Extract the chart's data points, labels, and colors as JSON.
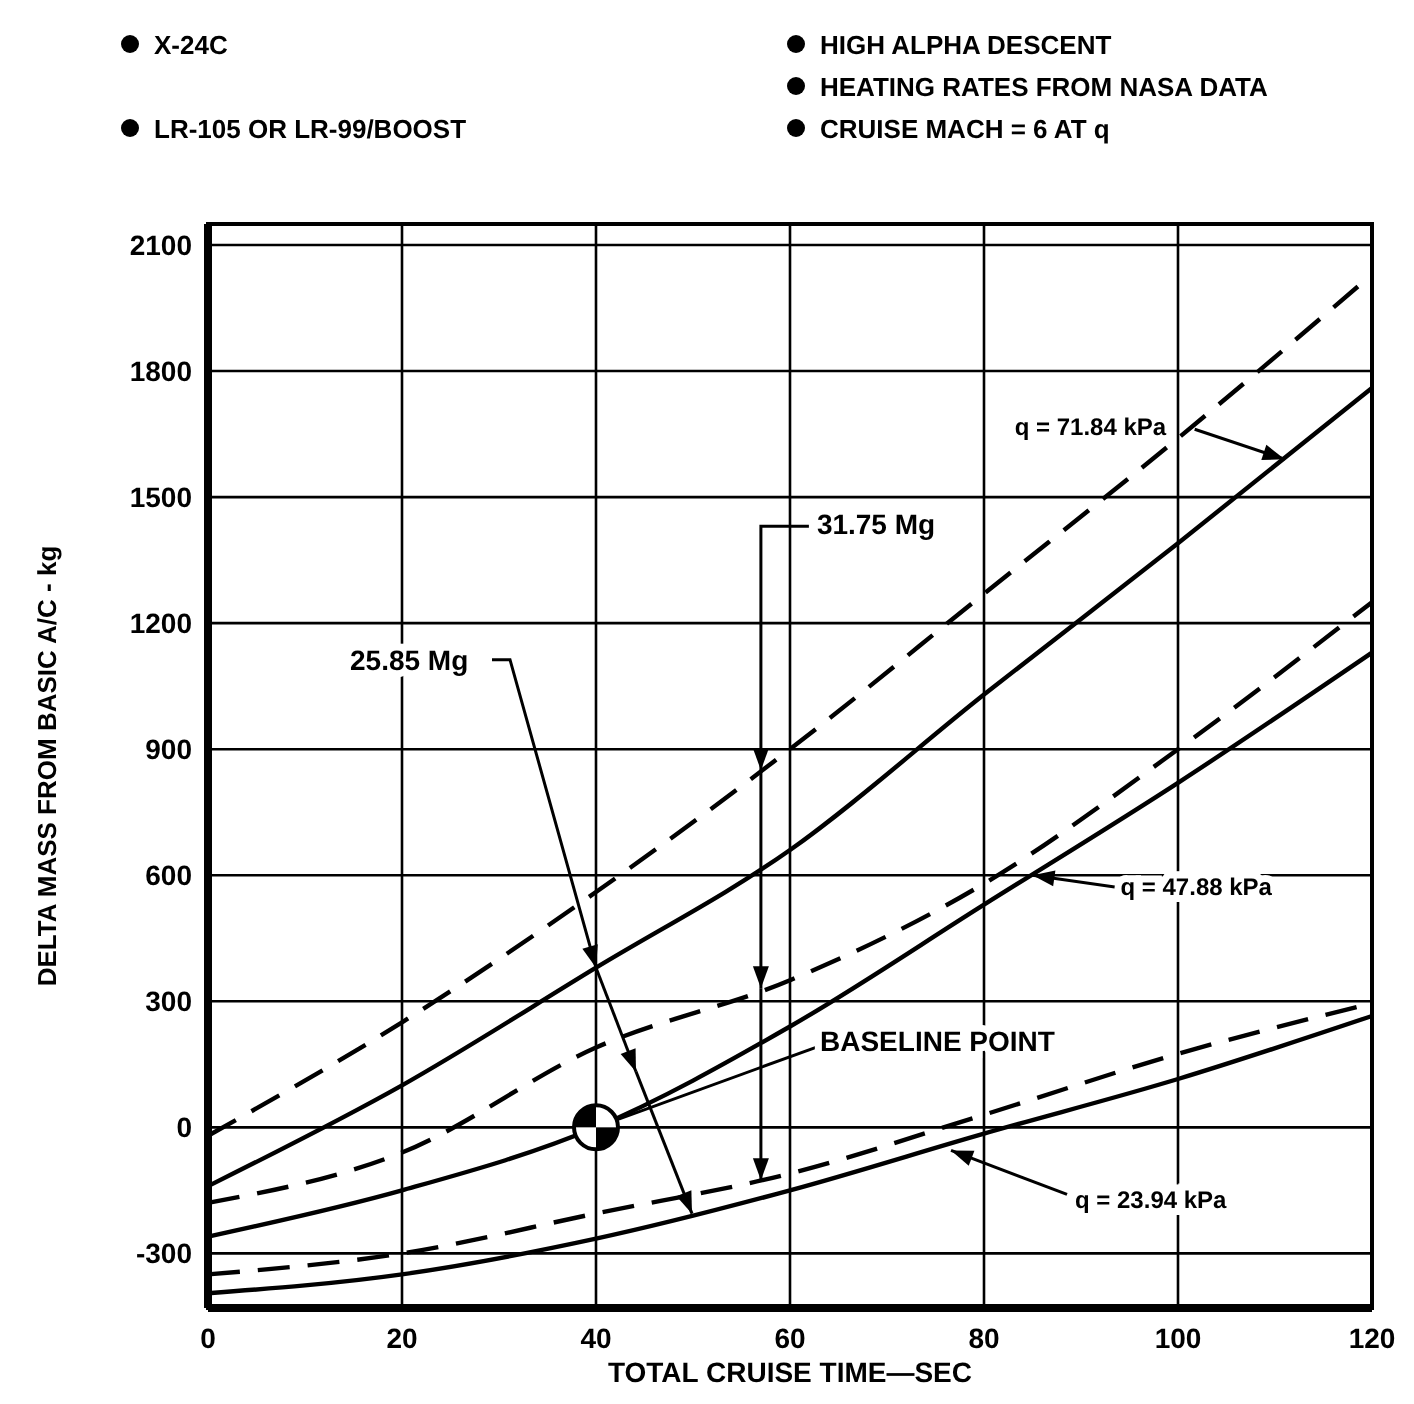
{
  "chart_data": {
    "type": "line",
    "xlabel": "TOTAL CRUISE TIME—SEC",
    "ylabel": "DELTA MASS FROM BASIC A/C - kg",
    "xlim": [
      0,
      120
    ],
    "xticks": [
      0,
      20,
      40,
      60,
      80,
      100,
      120
    ],
    "ylim": [
      -430,
      2150
    ],
    "yticks": [
      -300,
      0,
      300,
      600,
      900,
      1200,
      1500,
      1800,
      2100
    ],
    "grid": true,
    "series": [
      {
        "color": "#000000",
        "line_style": "dashed",
        "x": [
          0,
          20,
          40,
          60,
          80,
          100,
          120
        ],
        "values": [
          -20,
          250,
          560,
          900,
          1270,
          1640,
          2030
        ]
      },
      {
        "color": "#000000",
        "line_style": "solid",
        "x": [
          0,
          20,
          40,
          60,
          80,
          100,
          120
        ],
        "values": [
          -140,
          100,
          380,
          660,
          1030,
          1390,
          1760
        ]
      },
      {
        "color": "#000000",
        "line_style": "dashed",
        "x": [
          0,
          20,
          40,
          60,
          80,
          100,
          120
        ],
        "values": [
          -180,
          -60,
          190,
          350,
          580,
          900,
          1250
        ]
      },
      {
        "color": "#000000",
        "line_style": "solid",
        "x": [
          0,
          20,
          40,
          60,
          80,
          100,
          120
        ],
        "values": [
          -260,
          -150,
          0,
          240,
          530,
          820,
          1130
        ]
      },
      {
        "color": "#000000",
        "line_style": "dashed",
        "x": [
          0,
          20,
          40,
          60,
          80,
          100,
          120
        ],
        "values": [
          -350,
          -300,
          -205,
          -110,
          30,
          175,
          295
        ]
      },
      {
        "color": "#000000",
        "line_style": "solid",
        "x": [
          0,
          20,
          40,
          60,
          80,
          100,
          120
        ],
        "values": [
          -395,
          -350,
          -265,
          -150,
          -15,
          115,
          265
        ]
      },
      {
        "type": "scatter",
        "color": "#000000",
        "marker": "circle",
        "x": [
          40
        ],
        "values": [
          0
        ]
      }
    ],
    "annotations": [
      "X-24C",
      "LR-105 OR LR-99/BOOST",
      "HIGH ALPHA DESCENT",
      "HEATING RATES FROM NASA DATA",
      "CRUISE MACH = 6 AT q",
      {
        "text": "25.85 Mg",
        "x": 40,
        "y": 380
      },
      {
        "text": "31.75 Mg",
        "x": 57,
        "y": 850
      },
      {
        "text": "q = 71.84 kPa",
        "x": 111,
        "y": 1590
      },
      {
        "text": "q = 47.88 kPa",
        "x": 85,
        "y": 600
      },
      {
        "text": "q = 23.94 kPa",
        "x": 76.6,
        "y": -55
      },
      {
        "text": "BASELINE POINT",
        "x": 40,
        "y": 0
      }
    ]
  }
}
